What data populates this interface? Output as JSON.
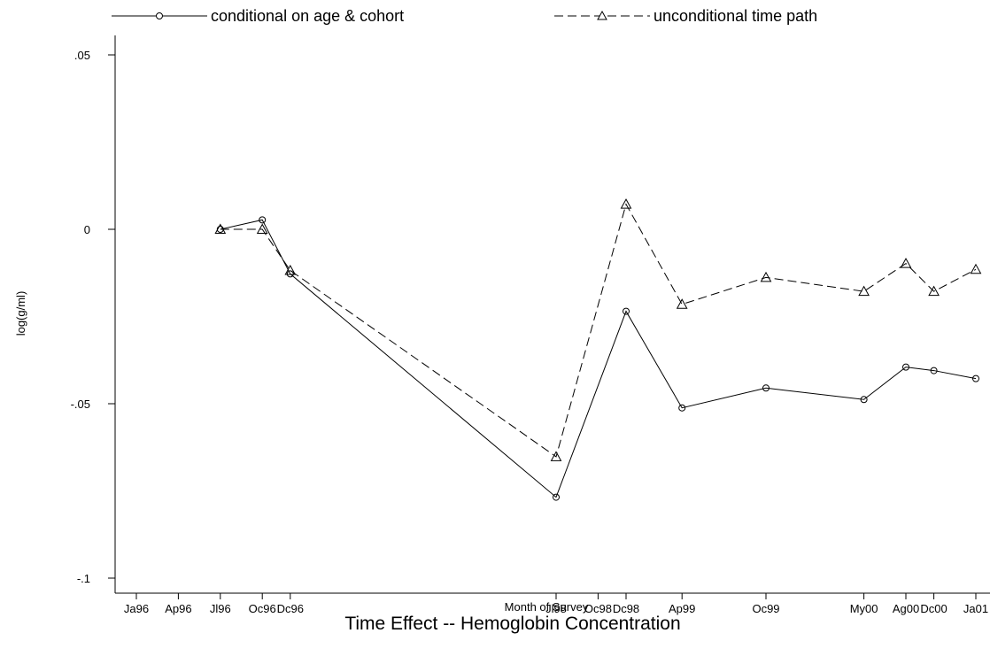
{
  "chart_data": {
    "type": "line",
    "title": "Time Effect -- Hemoglobin Concentration",
    "xlabel": "Month of Survey",
    "ylabel": "log(g/ml)",
    "ylim": [
      -0.1,
      0.05
    ],
    "y_ticks": [
      {
        "value": 0.05,
        "label": ".05"
      },
      {
        "value": 0,
        "label": "0"
      },
      {
        "value": -0.05,
        "label": "-.05"
      },
      {
        "value": -0.1,
        "label": "-.1"
      }
    ],
    "x_ticks": [
      {
        "month": 0,
        "label": "Ja96"
      },
      {
        "month": 3,
        "label": "Ap96"
      },
      {
        "month": 6,
        "label": "Jl96"
      },
      {
        "month": 9,
        "label": "Oc96"
      },
      {
        "month": 11,
        "label": "Dc96"
      },
      {
        "month": 30,
        "label": "Jl98"
      },
      {
        "month": 33,
        "label": "Oc98"
      },
      {
        "month": 35,
        "label": "Dc98"
      },
      {
        "month": 39,
        "label": "Ap99"
      },
      {
        "month": 45,
        "label": "Oc99"
      },
      {
        "month": 52,
        "label": "My00"
      },
      {
        "month": 55,
        "label": "Ag00"
      },
      {
        "month": 57,
        "label": "Dc00"
      },
      {
        "month": 60,
        "label": "Ja01"
      }
    ],
    "xlim": [
      -2,
      62
    ],
    "legend_position": "top",
    "grid": false,
    "series": [
      {
        "name": "conditional on age & cohort",
        "marker": "circle",
        "line_style": "solid",
        "points": [
          {
            "month": 6,
            "y": 0.0
          },
          {
            "month": 9,
            "y": 0.0027
          },
          {
            "month": 11,
            "y": -0.0128
          },
          {
            "month": 30,
            "y": -0.0768
          },
          {
            "month": 35,
            "y": -0.0235
          },
          {
            "month": 39,
            "y": -0.0512
          },
          {
            "month": 45,
            "y": -0.0455
          },
          {
            "month": 52,
            "y": -0.0488
          },
          {
            "month": 55,
            "y": -0.0395
          },
          {
            "month": 57,
            "y": -0.0405
          },
          {
            "month": 60,
            "y": -0.0428
          }
        ]
      },
      {
        "name": "unconditional time path",
        "marker": "triangle",
        "line_style": "dashed",
        "points": [
          {
            "month": 6,
            "y": 0.0
          },
          {
            "month": 9,
            "y": 0.0
          },
          {
            "month": 11,
            "y": -0.0118
          },
          {
            "month": 30,
            "y": -0.0652
          },
          {
            "month": 35,
            "y": 0.0072
          },
          {
            "month": 39,
            "y": -0.0215
          },
          {
            "month": 45,
            "y": -0.0138
          },
          {
            "month": 52,
            "y": -0.0178
          },
          {
            "month": 55,
            "y": -0.0098
          },
          {
            "month": 57,
            "y": -0.0178
          },
          {
            "month": 60,
            "y": -0.0115
          }
        ]
      }
    ]
  }
}
